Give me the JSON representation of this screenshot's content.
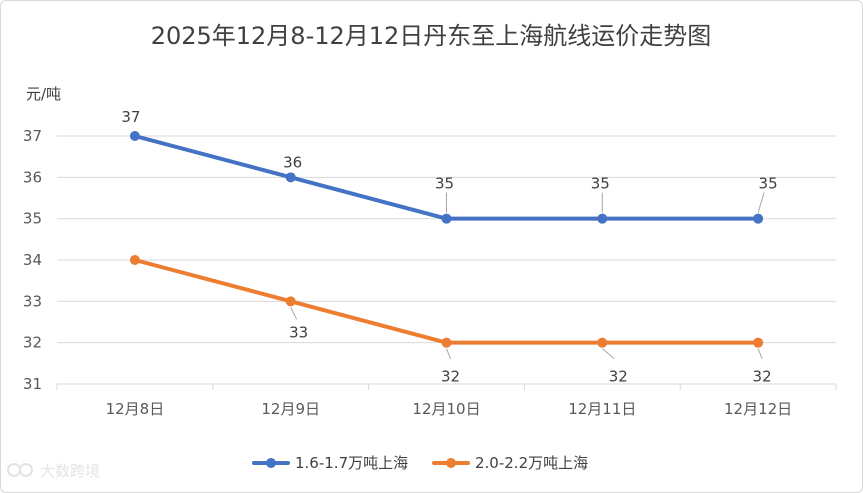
{
  "chart_data": {
    "type": "line",
    "title": "2025年12月8-12月12日丹东至上海航线运价走势图",
    "ylabel": "元/吨",
    "xlabel": "",
    "categories": [
      "12月8日",
      "12月9日",
      "12月10日",
      "12月11日",
      "12月12日"
    ],
    "ylim": [
      31,
      37
    ],
    "yticks": [
      31,
      32,
      33,
      34,
      35,
      36,
      37
    ],
    "grid": true,
    "legend_position": "bottom",
    "series": [
      {
        "name": "1.6-1.7万吨上海",
        "color": "#4472c4",
        "values": [
          37,
          36,
          35,
          35,
          35
        ]
      },
      {
        "name": "2.0-2.2万吨上海",
        "color": "#ed7d31",
        "values": [
          34,
          33,
          32,
          32,
          32
        ]
      }
    ]
  },
  "watermark": {
    "text": "大数跨境"
  }
}
